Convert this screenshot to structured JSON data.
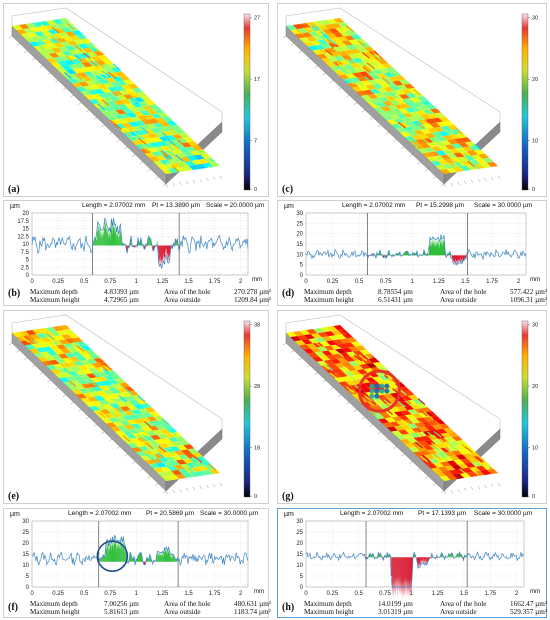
{
  "panels": {
    "a": {
      "label": "(a)",
      "scale_ticks": [
        "27",
        "17",
        "7",
        "0"
      ],
      "cmap": "jet"
    },
    "c": {
      "label": "(c)",
      "scale_ticks": [
        "30",
        "20",
        "10",
        "0"
      ],
      "cmap": "jet"
    },
    "e": {
      "label": "(e)",
      "scale_ticks": [
        "38",
        "28",
        "18",
        "0"
      ],
      "cmap": "jet"
    },
    "g": {
      "label": "(g)",
      "scale_ticks": [
        "30",
        "20",
        "10",
        "0"
      ],
      "cmap": "jet"
    }
  },
  "profiles": {
    "b": {
      "label": "(b)",
      "length": "Length = 2.07002 mm",
      "pt": "Pt = 13.3890 µm",
      "scale": "Scale = 20.0000 µm",
      "unit": "µm",
      "xunit": "mm",
      "yticks": [
        "20",
        "17.5",
        "15",
        "12.5",
        "10",
        "7.5",
        "5",
        "2.5",
        "0"
      ],
      "xticks": [
        "0",
        "0.25",
        "0.5",
        "0.75",
        "1",
        "1.25",
        "1.5",
        "1.75",
        "2"
      ],
      "ymax": 20,
      "stats": {
        "max_depth_label": "Maximum depth",
        "max_depth": "4.83393 µm",
        "max_height_label": "Maximum height",
        "max_height": "4.72965 µm",
        "hole_label": "Area of the hole",
        "hole": "270.278 µm²",
        "outside_label": "Area outside",
        "outside": "1209.84 µm²"
      }
    },
    "d": {
      "label": "(d)",
      "length": "Length = 2.07002 mm",
      "pt": "Pt = 15.2998 µm",
      "scale": "Scale = 30.0000 µm",
      "unit": "µm",
      "xunit": "mm",
      "yticks": [
        "30",
        "25",
        "20",
        "15",
        "10",
        "5",
        "0"
      ],
      "xticks": [
        "0",
        "0.25",
        "0.5",
        "0.75",
        "1",
        "1.25",
        "1.5",
        "1.75",
        "2"
      ],
      "ymax": 30,
      "stats": {
        "max_depth_label": "Maximum depth",
        "max_depth": "8.78554 µm",
        "max_height_label": "Maximum height",
        "max_height": "6.51431 µm",
        "hole_label": "Area of the hole",
        "hole": "577.422 µm²",
        "outside_label": "Area outside",
        "outside": "1096.31 µm²"
      }
    },
    "f": {
      "label": "(f)",
      "length": "Length = 2.07002 mm",
      "pt": "Pt = 20.5869 µm",
      "scale": "Scale = 30.0000 µm",
      "unit": "µm",
      "xunit": "mm",
      "yticks": [
        "30",
        "25",
        "20",
        "15",
        "10",
        "5",
        "0"
      ],
      "xticks": [
        "0",
        "0.25",
        "0.5",
        "0.75",
        "1",
        "1.25",
        "1.5",
        "1.75",
        "2"
      ],
      "ymax": 30,
      "stats": {
        "max_depth_label": "Maximum depth",
        "max_depth": "7.00256 µm",
        "max_height_label": "Maximum height",
        "max_height": "5.81613 µm",
        "hole_label": "Area of the hole",
        "hole": "480.631 µm²",
        "outside_label": "Area outside",
        "outside": "1183.74 µm²"
      }
    },
    "h": {
      "label": "(h)",
      "length": "Length = 2.07002 mm",
      "pt": "Pt = 17.1393 µm",
      "scale": "Scale = 30.0000 µm",
      "unit": "µm",
      "xunit": "mm",
      "yticks": [
        "30",
        "25",
        "20",
        "15",
        "10",
        "5",
        "0"
      ],
      "xticks": [
        "0",
        "0.25",
        "0.5",
        "0.75",
        "1",
        "1.25",
        "1.5",
        "1.75",
        "2"
      ],
      "ymax": 30,
      "stats": {
        "max_depth_label": "Maximum depth",
        "max_depth": "14.0199 µm",
        "max_height_label": "Maximum height",
        "max_height": "3.01319 µm",
        "hole_label": "Area of the hole",
        "hole": "1662.47 µm²",
        "outside_label": "Area outside",
        "outside": "529.357 µm²"
      }
    }
  },
  "colors": {
    "profile_line": "#3f86c4",
    "hole_above": "#2fbf3a",
    "hole_below": "#d81b33",
    "grid": "#d4d4d4",
    "highlight_border": "#5aa0d8",
    "circle_red": "#e8332a",
    "circle_blue": "#1e4d8c"
  }
}
